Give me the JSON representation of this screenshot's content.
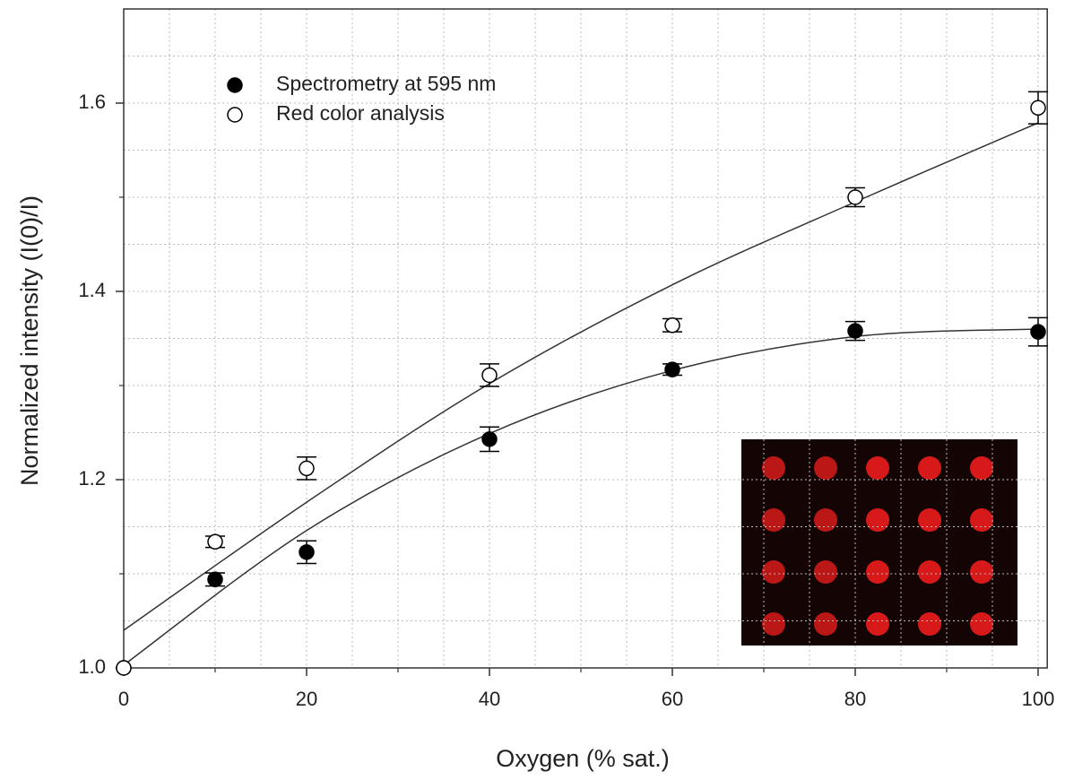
{
  "chart_data": {
    "type": "scatter",
    "x_label": "Oxygen (% sat.)",
    "y_label": "Normalized intensity (I(0)/I)",
    "xlim": [
      0,
      101
    ],
    "ylim": [
      1.0,
      1.7
    ],
    "xticks": [
      0,
      20,
      40,
      60,
      80,
      100
    ],
    "yticks": [
      {
        "value": 1,
        "label": "1.0"
      },
      1.2,
      1.4,
      1.6
    ],
    "xminorticks": [
      10,
      30,
      50,
      70,
      90
    ],
    "yminorticks": [
      1.1,
      1.3,
      1.5
    ],
    "xgrid": [
      5,
      10,
      15,
      20,
      25,
      30,
      35,
      40,
      45,
      50,
      55,
      60,
      65,
      70,
      75,
      80,
      85,
      90,
      95,
      100
    ],
    "ygrid": [
      1.05,
      1.1,
      1.15,
      1.2,
      1.25,
      1.3,
      1.35,
      1.4,
      1.45,
      1.5,
      1.55,
      1.6,
      1.65
    ],
    "grid": true,
    "legend": "upper left",
    "x": [
      0,
      10,
      20,
      40,
      60,
      80,
      100
    ],
    "fit_x": [
      0,
      20,
      40,
      60,
      80,
      100
    ],
    "series": [
      {
        "name": "Spectrometry at 595 nm",
        "color": "#000000",
        "marker": "filled",
        "values": [
          1.0,
          1.094,
          1.123,
          1.243,
          1.317,
          1.358,
          1.357
        ],
        "errors": [
          0,
          0.007,
          0.012,
          0.013,
          0.006,
          0.01,
          0.015
        ],
        "fit": [
          1.003,
          1.146,
          1.249,
          1.316,
          1.352,
          1.36
        ]
      },
      {
        "name": "Red color analysis",
        "color": "#000000",
        "marker": "open",
        "values": [
          1.0,
          1.134,
          1.212,
          1.311,
          1.364,
          1.5,
          1.595
        ],
        "errors": [
          0,
          0.006,
          0.012,
          0.012,
          0.007,
          0.01,
          0.017
        ],
        "fit": [
          1.04,
          1.176,
          1.302,
          1.407,
          1.495,
          1.579
        ]
      }
    ]
  }
}
